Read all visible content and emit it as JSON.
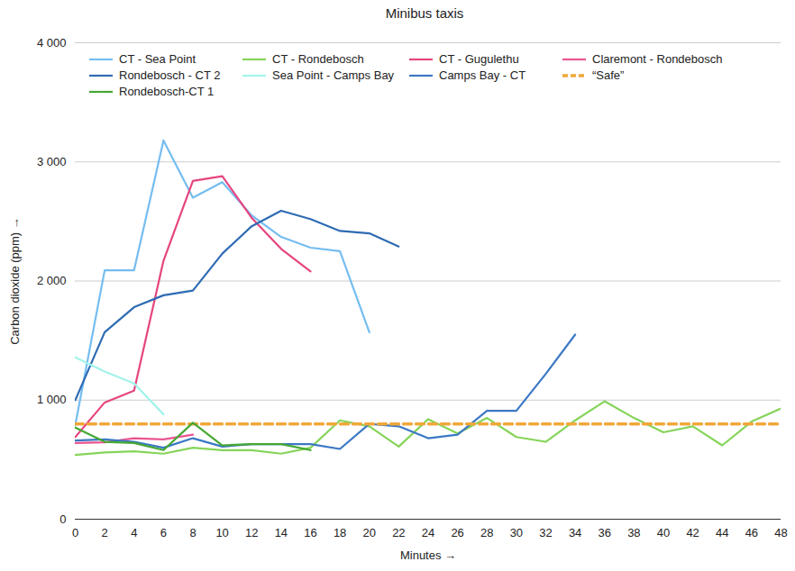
{
  "chart_data": {
    "type": "line",
    "title": "Minibus taxis",
    "x_label": "Minutes",
    "y_label": "Carbon dioxide (ppm)",
    "x": [
      0,
      2,
      4,
      6,
      8,
      10,
      12,
      14,
      16,
      18,
      20,
      22,
      24,
      26,
      28,
      30,
      32,
      34,
      36,
      38,
      40,
      42,
      44,
      46,
      48
    ],
    "xlim": [
      0,
      48
    ],
    "xticks": [
      0,
      2,
      4,
      6,
      8,
      10,
      12,
      14,
      16,
      18,
      20,
      22,
      24,
      26,
      28,
      30,
      32,
      34,
      36,
      38,
      40,
      42,
      44,
      46,
      48
    ],
    "ylim": [
      0,
      4000
    ],
    "yticks": [
      0,
      {
        "value": 1000,
        "label": "1 000"
      },
      {
        "value": 2000,
        "label": "2 000"
      },
      {
        "value": 3000,
        "label": "3 000"
      },
      {
        "value": 4000,
        "label": "4 000"
      }
    ],
    "grid": true,
    "legend": "top",
    "series": [
      {
        "name": "CT - Sea Point",
        "color": "#75bdf0",
        "values": [
          790,
          2090,
          2090,
          3180,
          2700,
          2830,
          2550,
          2370,
          2280,
          2250,
          1570,
          null,
          null,
          null,
          null,
          null,
          null,
          null,
          null,
          null,
          null,
          null,
          null,
          null,
          null
        ]
      },
      {
        "name": "CT - Rondebosch",
        "color": "#86d45a",
        "values": [
          540,
          560,
          570,
          550,
          600,
          580,
          580,
          550,
          600,
          830,
          780,
          610,
          840,
          720,
          850,
          690,
          650,
          830,
          990,
          850,
          730,
          780,
          620,
          820,
          930
        ]
      },
      {
        "name": "CT - Gugulethu",
        "color": "#e6457f",
        "values": [
          690,
          980,
          1080,
          2170,
          2840,
          2880,
          2530,
          2270,
          2080,
          null,
          null,
          null,
          null,
          null,
          null,
          null,
          null,
          null,
          null,
          null,
          null,
          null,
          null,
          null,
          null
        ]
      },
      {
        "name": "Claremont - Rondebosch",
        "color": "#ea5590",
        "values": [
          640,
          645,
          680,
          670,
          710,
          null,
          null,
          null,
          null,
          null,
          null,
          null,
          null,
          null,
          null,
          null,
          null,
          null,
          null,
          null,
          null,
          null,
          null,
          null,
          null
        ]
      },
      {
        "name": "Rondebosch - CT 2",
        "color": "#2e6bb3",
        "values": [
          1000,
          1570,
          1780,
          1880,
          1920,
          2230,
          2460,
          2590,
          2520,
          2420,
          2400,
          2290,
          null,
          null,
          null,
          null,
          null,
          null,
          null,
          null,
          null,
          null,
          null,
          null,
          null
        ]
      },
      {
        "name": "Sea Point - Camps Bay",
        "color": "#a3f3ea",
        "values": [
          1360,
          1240,
          1140,
          880,
          null,
          null,
          null,
          null,
          null,
          null,
          null,
          null,
          null,
          null,
          null,
          null,
          null,
          null,
          null,
          null,
          null,
          null,
          null,
          null,
          null
        ]
      },
      {
        "name": "Camps Bay - CT",
        "color": "#3b78c4",
        "values": [
          660,
          670,
          650,
          600,
          680,
          610,
          630,
          630,
          630,
          590,
          800,
          780,
          680,
          710,
          910,
          910,
          1220,
          1550,
          null,
          null,
          null,
          null,
          null,
          null,
          null
        ]
      },
      {
        "name": "“Safe”",
        "color": "#f0a83a",
        "line_style": "dashed",
        "values": [
          800,
          800,
          800,
          800,
          800,
          800,
          800,
          800,
          800,
          800,
          800,
          800,
          800,
          800,
          800,
          800,
          800,
          800,
          800,
          800,
          800,
          800,
          800,
          800,
          800
        ]
      },
      {
        "name": "Rondebosch-CT 1",
        "color": "#44a832",
        "values": [
          770,
          650,
          640,
          580,
          810,
          620,
          630,
          630,
          580,
          null,
          null,
          null,
          null,
          null,
          null,
          null,
          null,
          null,
          null,
          null,
          null,
          null,
          null,
          null,
          null
        ]
      }
    ]
  }
}
